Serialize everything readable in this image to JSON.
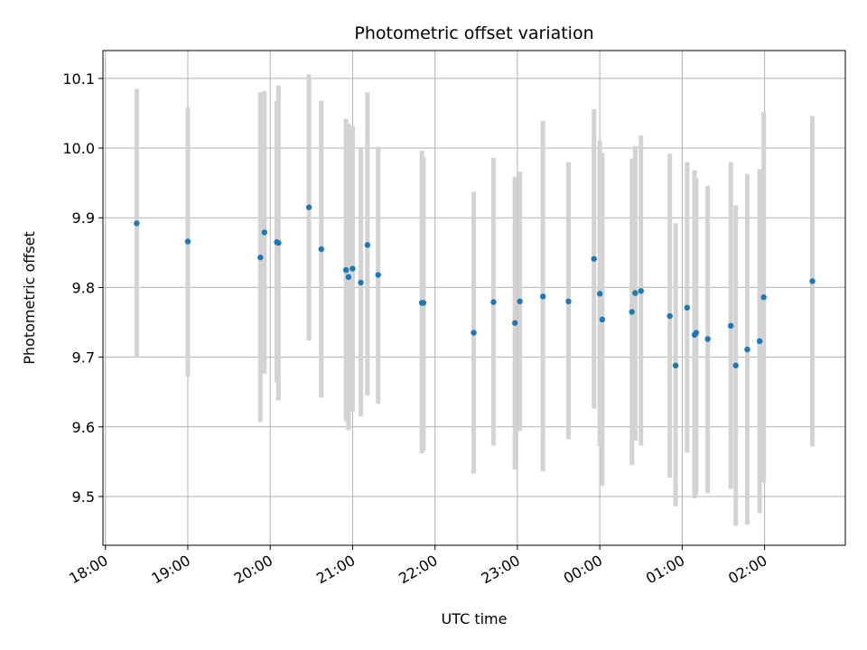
{
  "chart_data": {
    "type": "scatter",
    "title": "Photometric offset variation",
    "xlabel": "UTC time",
    "ylabel": "Photometric offset",
    "x_axis_type": "time",
    "x_ticks": [
      "18:00",
      "19:00",
      "20:00",
      "21:00",
      "22:00",
      "23:00",
      "00:00",
      "01:00",
      "02:00"
    ],
    "x_tick_hours": [
      18,
      19,
      20,
      21,
      22,
      23,
      24,
      25,
      26
    ],
    "xlim": [
      17.97,
      26.98
    ],
    "ylim": [
      9.43,
      10.14
    ],
    "y_ticks": [
      9.5,
      9.6,
      9.7,
      9.8,
      9.9,
      10.0,
      10.1
    ],
    "y_tick_labels": [
      "9.5",
      "9.6",
      "9.7",
      "9.8",
      "9.9",
      "10.0",
      "10.1"
    ],
    "grid": true,
    "colors": {
      "point": "#1f77b4",
      "errorbar": "#d3d3d3",
      "grid": "#b0b0b0"
    },
    "points": [
      {
        "x": 18.38,
        "y": 9.892,
        "low": 9.7,
        "high": 10.085
      },
      {
        "x": 19.0,
        "y": 9.866,
        "low": 9.672,
        "high": 10.058
      },
      {
        "x": 19.88,
        "y": 9.843,
        "low": 9.607,
        "high": 10.08
      },
      {
        "x": 19.93,
        "y": 9.879,
        "low": 9.676,
        "high": 10.082
      },
      {
        "x": 20.08,
        "y": 9.865,
        "low": 9.664,
        "high": 10.068
      },
      {
        "x": 20.1,
        "y": 9.864,
        "low": 9.638,
        "high": 10.09
      },
      {
        "x": 20.47,
        "y": 9.915,
        "low": 9.724,
        "high": 10.106
      },
      {
        "x": 20.62,
        "y": 9.855,
        "low": 9.642,
        "high": 10.068
      },
      {
        "x": 20.92,
        "y": 9.825,
        "low": 9.608,
        "high": 10.042
      },
      {
        "x": 20.95,
        "y": 9.815,
        "low": 9.595,
        "high": 10.035
      },
      {
        "x": 21.0,
        "y": 9.827,
        "low": 9.622,
        "high": 10.032
      },
      {
        "x": 21.1,
        "y": 9.807,
        "low": 9.615,
        "high": 10.0
      },
      {
        "x": 21.18,
        "y": 9.861,
        "low": 9.645,
        "high": 10.08
      },
      {
        "x": 21.31,
        "y": 9.818,
        "low": 9.633,
        "high": 10.002
      },
      {
        "x": 21.84,
        "y": 9.778,
        "low": 9.562,
        "high": 9.996
      },
      {
        "x": 21.86,
        "y": 9.778,
        "low": 9.566,
        "high": 9.988
      },
      {
        "x": 22.47,
        "y": 9.735,
        "low": 9.533,
        "high": 9.937
      },
      {
        "x": 22.71,
        "y": 9.779,
        "low": 9.573,
        "high": 9.986
      },
      {
        "x": 22.97,
        "y": 9.749,
        "low": 9.539,
        "high": 9.959
      },
      {
        "x": 23.03,
        "y": 9.78,
        "low": 9.594,
        "high": 9.966
      },
      {
        "x": 23.31,
        "y": 9.787,
        "low": 9.536,
        "high": 10.039
      },
      {
        "x": 23.62,
        "y": 9.78,
        "low": 9.582,
        "high": 9.98
      },
      {
        "x": 23.93,
        "y": 9.841,
        "low": 9.626,
        "high": 10.056
      },
      {
        "x": 24.0,
        "y": 9.791,
        "low": 9.572,
        "high": 10.011
      },
      {
        "x": 24.03,
        "y": 9.754,
        "low": 9.515,
        "high": 9.993
      },
      {
        "x": 24.39,
        "y": 9.765,
        "low": 9.545,
        "high": 9.985
      },
      {
        "x": 24.43,
        "y": 9.792,
        "low": 9.58,
        "high": 10.003
      },
      {
        "x": 24.5,
        "y": 9.795,
        "low": 9.573,
        "high": 10.018
      },
      {
        "x": 24.85,
        "y": 9.759,
        "low": 9.527,
        "high": 9.992
      },
      {
        "x": 24.92,
        "y": 9.688,
        "low": 9.486,
        "high": 9.892
      },
      {
        "x": 25.06,
        "y": 9.771,
        "low": 9.563,
        "high": 9.98
      },
      {
        "x": 25.15,
        "y": 9.732,
        "low": 9.497,
        "high": 9.968
      },
      {
        "x": 25.17,
        "y": 9.735,
        "low": 9.503,
        "high": 9.957
      },
      {
        "x": 25.31,
        "y": 9.726,
        "low": 9.505,
        "high": 9.946
      },
      {
        "x": 25.59,
        "y": 9.745,
        "low": 9.511,
        "high": 9.98
      },
      {
        "x": 25.65,
        "y": 9.688,
        "low": 9.458,
        "high": 9.918
      },
      {
        "x": 25.79,
        "y": 9.711,
        "low": 9.46,
        "high": 9.963
      },
      {
        "x": 25.94,
        "y": 9.723,
        "low": 9.476,
        "high": 9.97
      },
      {
        "x": 25.99,
        "y": 9.786,
        "low": 9.52,
        "high": 10.052
      },
      {
        "x": 26.58,
        "y": 9.809,
        "low": 9.572,
        "high": 10.046
      }
    ]
  }
}
